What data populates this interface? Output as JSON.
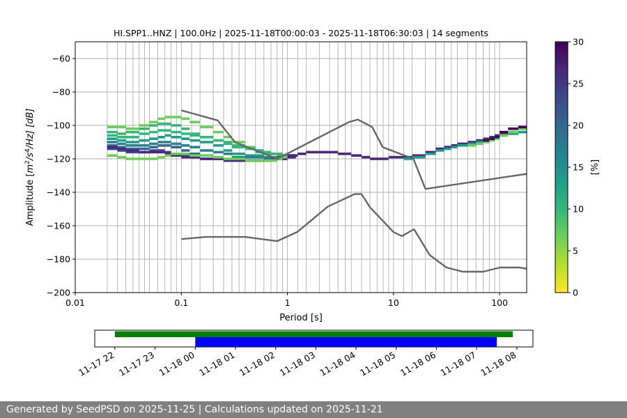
{
  "chart_data": [
    {
      "type": "heatmap",
      "title": "HI.SPP1..HNZ | 100.0Hz | 2025-11-18T00:00:03 - 2025-11-18T06:30:03 | 14 segments",
      "xlabel": "Period [s]",
      "ylabel_parts": {
        "prefix": "Amplitude [",
        "m": "m",
        "sup2": "2",
        "mid": "/s",
        "sup4": "4",
        "suffix": "/Hz] [dB]"
      },
      "xscale": "log",
      "xlim": [
        0.01,
        180
      ],
      "ylim": [
        -200,
        -50
      ],
      "x_ticks": [
        {
          "value": 0.01,
          "label": "0.01"
        },
        {
          "value": 0.1,
          "label": "0.1"
        },
        {
          "value": 1,
          "label": "1"
        },
        {
          "value": 10,
          "label": "10"
        },
        {
          "value": 100,
          "label": "100"
        }
      ],
      "y_ticks": [
        {
          "value": -60,
          "label": "−60"
        },
        {
          "value": -80,
          "label": "−80"
        },
        {
          "value": -100,
          "label": "−100"
        },
        {
          "value": -120,
          "label": "−120"
        },
        {
          "value": -140,
          "label": "−140"
        },
        {
          "value": -160,
          "label": "−160"
        },
        {
          "value": -180,
          "label": "−180"
        },
        {
          "value": -200,
          "label": "−200"
        }
      ],
      "period_bin_lines": [
        0.02,
        0.025,
        0.03,
        0.035,
        0.04,
        0.045,
        0.05,
        0.06,
        0.07,
        0.08,
        0.09,
        0.125,
        0.15,
        0.2,
        0.25,
        0.3,
        0.35,
        0.4,
        0.5,
        0.6,
        0.7,
        0.8,
        0.9,
        1.25,
        1.5,
        2,
        2.5,
        3,
        3.5,
        4,
        5,
        6,
        7,
        8,
        9,
        12.5,
        15,
        20,
        25,
        30,
        35,
        40,
        50,
        60,
        70,
        80,
        90
      ],
      "density_tracks": [
        {
          "x": [
            0.02,
            0.025,
            0.03,
            0.04,
            0.05,
            0.06,
            0.07,
            0.08,
            0.1,
            0.12,
            0.15,
            0.2,
            0.25,
            0.3,
            0.4,
            0.5,
            0.6,
            0.7,
            0.8,
            0.9,
            1
          ],
          "y": [
            -101,
            -101,
            -102,
            -100,
            -98,
            -96,
            -95,
            -95,
            -96,
            -98,
            -101,
            -104,
            -107,
            -110,
            -113,
            -115,
            -116,
            -117,
            -118,
            -118,
            -118
          ],
          "pct": 8
        },
        {
          "x": [
            0.02,
            0.025,
            0.03,
            0.04,
            0.05,
            0.06,
            0.07,
            0.08,
            0.1,
            0.12,
            0.15,
            0.2,
            0.25,
            0.3,
            0.4,
            0.5,
            0.6,
            0.7,
            0.8,
            0.9,
            1
          ],
          "y": [
            -104,
            -105,
            -104,
            -102,
            -100,
            -99,
            -99,
            -100,
            -102,
            -105,
            -107,
            -109,
            -111,
            -113,
            -114,
            -115,
            -116,
            -117,
            -117,
            -118,
            -118
          ],
          "pct": 9
        },
        {
          "x": [
            0.02,
            0.025,
            0.03,
            0.04,
            0.05,
            0.06,
            0.07,
            0.08,
            0.1,
            0.12,
            0.15,
            0.2,
            0.25,
            0.3,
            0.4,
            0.5,
            0.6,
            0.7,
            0.8,
            0.9,
            1
          ],
          "y": [
            -106,
            -107,
            -107,
            -105,
            -104,
            -103,
            -103,
            -104,
            -105,
            -106,
            -107,
            -109,
            -110,
            -112,
            -114,
            -116,
            -117,
            -117,
            -118,
            -118,
            -118
          ],
          "pct": 11
        },
        {
          "x": [
            0.02,
            0.025,
            0.03,
            0.04,
            0.05,
            0.06,
            0.07,
            0.08,
            0.1,
            0.12,
            0.15,
            0.2,
            0.25,
            0.3,
            0.4,
            0.5,
            0.6,
            0.7,
            0.8,
            0.9,
            1
          ],
          "y": [
            -108,
            -109,
            -110,
            -109,
            -108,
            -107,
            -106,
            -107,
            -108,
            -109,
            -110,
            -112,
            -115,
            -117,
            -118,
            -118,
            -119,
            -119,
            -119,
            -119,
            -119
          ],
          "pct": 13
        },
        {
          "x": [
            0.02,
            0.025,
            0.03,
            0.04,
            0.05,
            0.06,
            0.07,
            0.08,
            0.1,
            0.12,
            0.15,
            0.2,
            0.25,
            0.3,
            0.4,
            0.5,
            0.6,
            0.7,
            0.8,
            0.9,
            1
          ],
          "y": [
            -110,
            -111,
            -112,
            -112,
            -111,
            -110,
            -110,
            -111,
            -112,
            -113,
            -115,
            -116,
            -117,
            -119,
            -119,
            -119,
            -120,
            -120,
            -120,
            -120,
            -119
          ],
          "pct": 16
        },
        {
          "x": [
            0.02,
            0.025,
            0.03,
            0.04,
            0.05,
            0.06,
            0.07,
            0.08,
            0.1,
            0.12,
            0.15,
            0.2,
            0.25,
            0.3,
            0.4,
            0.5,
            0.6,
            0.7,
            0.8,
            0.9,
            1
          ],
          "y": [
            -112,
            -113,
            -114,
            -114,
            -113,
            -112,
            -112,
            -113,
            -115,
            -117,
            -118,
            -120,
            -121,
            -121,
            -121,
            -121,
            -120,
            -120,
            -119,
            -119,
            -118
          ],
          "pct": 19
        },
        {
          "x": [
            0.02,
            0.025,
            0.03,
            0.04,
            0.05,
            0.06,
            0.07,
            0.08,
            0.1,
            0.12,
            0.15,
            0.2,
            0.25,
            0.3,
            0.4,
            0.5,
            0.6,
            0.7,
            0.8,
            0.9,
            1
          ],
          "y": [
            -114,
            -115,
            -116,
            -116,
            -115,
            -115,
            -116,
            -117,
            -118,
            -119,
            -120,
            -120,
            -121,
            -121,
            -121,
            -121,
            -121,
            -120,
            -120,
            -119,
            -119
          ],
          "pct": 22
        },
        {
          "x": [
            0.02,
            0.025,
            0.03,
            0.04,
            0.05,
            0.06,
            0.07,
            0.08,
            0.1,
            0.12,
            0.15,
            0.2,
            0.25,
            0.3,
            0.4,
            0.5,
            0.6,
            0.7,
            0.8,
            0.9,
            1
          ],
          "y": [
            -113,
            -114,
            -115,
            -116,
            -116,
            -116,
            -117,
            -118,
            -119,
            -119,
            -120,
            -120,
            -121,
            -121,
            -121,
            -121,
            -121,
            -121,
            -120,
            -120,
            -119
          ],
          "pct": 26
        },
        {
          "x": [
            0.02,
            0.025,
            0.03,
            0.04,
            0.05,
            0.06,
            0.07,
            0.08,
            0.1,
            0.12,
            0.15,
            0.2,
            0.25,
            0.3,
            0.4,
            0.5,
            0.6,
            0.7,
            0.8,
            0.9,
            1
          ],
          "y": [
            -118,
            -119,
            -120,
            -120,
            -120,
            -119,
            -118,
            -117,
            -117,
            -118,
            -118,
            -119,
            -120,
            -120,
            -121,
            -121,
            -121,
            -121,
            -120,
            -119,
            -118
          ],
          "pct": 6
        },
        {
          "x": [
            1,
            1.25,
            1.5,
            2,
            2.5,
            3,
            3.5,
            4,
            5,
            6,
            7,
            8,
            9,
            10,
            12.5,
            15,
            20,
            25,
            30,
            35,
            40,
            50,
            60,
            70,
            80,
            90,
            100,
            120,
            150
          ],
          "y": [
            -118,
            -117,
            -116,
            -116,
            -116,
            -117,
            -117,
            -118,
            -119,
            -120,
            -120,
            -120,
            -119,
            -119,
            -119,
            -118,
            -116,
            -114,
            -113,
            -112,
            -111,
            -110,
            -109,
            -108,
            -107,
            -106,
            -105,
            -104,
            -102
          ],
          "pct": 28
        },
        {
          "x": [
            12.5,
            15,
            20,
            25,
            30,
            35,
            40,
            50,
            60,
            70,
            80,
            90,
            100,
            120,
            150,
            180
          ],
          "y": [
            -120,
            -119,
            -117,
            -115,
            -114,
            -113,
            -112,
            -111,
            -110,
            -109,
            -108,
            -107,
            -106,
            -105,
            -104,
            -102
          ],
          "pct": 14
        },
        {
          "x": [
            50,
            60,
            70,
            80,
            90,
            100,
            120,
            150,
            180
          ],
          "y": [
            -112,
            -111,
            -110,
            -109,
            -108,
            -106,
            -104,
            -102,
            -100
          ],
          "pct": 8
        },
        {
          "x": [
            70,
            80,
            90,
            100,
            120,
            150,
            180
          ],
          "y": [
            -109,
            -108,
            -107,
            -104,
            -102,
            -101,
            -99
          ],
          "pct": 30
        }
      ],
      "noise_models": [
        {
          "name": "upper",
          "points": [
            [
              0.1,
              -91
            ],
            [
              0.22,
              -97
            ],
            [
              0.32,
              -110
            ],
            [
              0.8,
              -120
            ],
            [
              3.8,
              -98
            ],
            [
              4.6,
              -96.5
            ],
            [
              6.3,
              -101
            ],
            [
              7.9,
              -113
            ],
            [
              15.4,
              -120
            ],
            [
              20,
              -138
            ],
            [
              180,
              -129
            ]
          ]
        },
        {
          "name": "lower",
          "points": [
            [
              0.1,
              -168
            ],
            [
              0.17,
              -166.7
            ],
            [
              0.4,
              -166.7
            ],
            [
              0.8,
              -169.2
            ],
            [
              1.24,
              -163.7
            ],
            [
              2.4,
              -148.6
            ],
            [
              4.3,
              -141.1
            ],
            [
              5,
              -141.1
            ],
            [
              6,
              -149
            ],
            [
              10,
              -163.8
            ],
            [
              12,
              -166.2
            ],
            [
              15.6,
              -162.1
            ],
            [
              21.9,
              -177.5
            ],
            [
              31.6,
              -185
            ],
            [
              45,
              -187.5
            ],
            [
              70,
              -187.5
            ],
            [
              101,
              -185
            ],
            [
              154,
              -185
            ],
            [
              180,
              -185.7
            ]
          ]
        }
      ],
      "colorbar": {
        "label": "[%]",
        "range": [
          0,
          30
        ],
        "ticks": [
          {
            "value": 0,
            "label": "0"
          },
          {
            "value": 5,
            "label": "5"
          },
          {
            "value": 10,
            "label": "10"
          },
          {
            "value": 15,
            "label": "15"
          },
          {
            "value": 20,
            "label": "20"
          },
          {
            "value": 25,
            "label": "25"
          },
          {
            "value": 30,
            "label": "30"
          }
        ],
        "colormap": [
          "#fde725",
          "#b5de2b",
          "#6ece58",
          "#35b779",
          "#1f9e89",
          "#26828e",
          "#31688e",
          "#3e4989",
          "#482878",
          "#440154"
        ]
      }
    },
    {
      "type": "timeline",
      "xlim_hours": [
        -2.5,
        8.4
      ],
      "ticks": [
        {
          "hour": -2,
          "label": "11-17 22"
        },
        {
          "hour": -1,
          "label": "11-17 23"
        },
        {
          "hour": 0,
          "label": "11-18 00"
        },
        {
          "hour": 1,
          "label": "11-18 01"
        },
        {
          "hour": 2,
          "label": "11-18 02"
        },
        {
          "hour": 3,
          "label": "11-18 03"
        },
        {
          "hour": 4,
          "label": "11-18 04"
        },
        {
          "hour": 5,
          "label": "11-18 05"
        },
        {
          "hour": 6,
          "label": "11-18 06"
        },
        {
          "hour": 7,
          "label": "11-18 07"
        },
        {
          "hour": 8,
          "label": "11-18 08"
        }
      ],
      "bars": [
        {
          "name": "available-data",
          "start_hour": -2.0,
          "end_hour": 7.9,
          "color": "#008000"
        },
        {
          "name": "used-segments",
          "start_hour": 0.0,
          "end_hour": 7.5,
          "color": "#0000ff"
        }
      ]
    }
  ],
  "footer": {
    "text": "Generated by SeedPSD on 2025-11-25 | Calculations updated on 2025-11-21"
  }
}
